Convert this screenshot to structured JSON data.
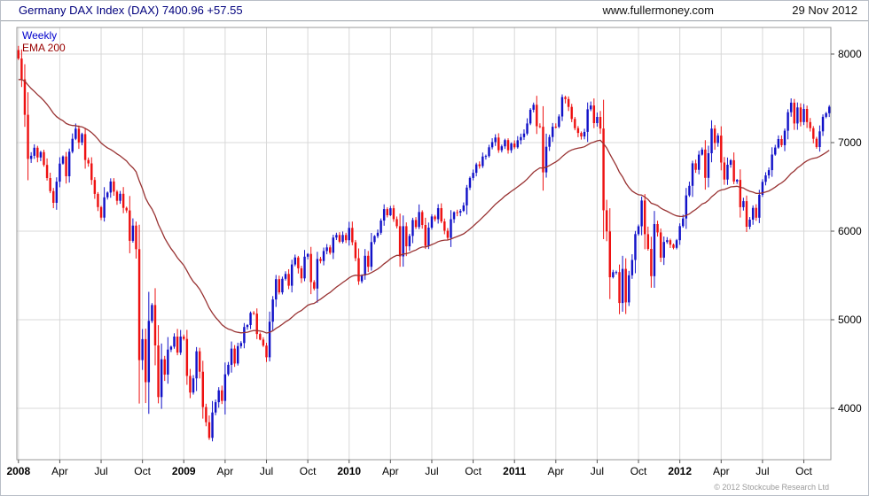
{
  "header": {
    "title": "Germany DAX Index (DAX) 7400.96 +57.55",
    "website": "www.fullermoney.com",
    "date": "29 Nov 2012"
  },
  "labels": {
    "frequency": "Weekly",
    "ema": "EMA 200"
  },
  "footer": {
    "copyright": "© 2012 Stockcube Research Ltd"
  },
  "chart_data": {
    "type": "candlestick",
    "title": "Germany DAX Index (DAX)",
    "frequency": "weekly",
    "last_price": 7400.96,
    "change": "+57.55",
    "ylim": [
      3420,
      8300
    ],
    "y_ticks": [
      4000,
      5000,
      6000,
      7000,
      8000
    ],
    "x_ticks": [
      {
        "label": "2008",
        "week": 0,
        "bold": true
      },
      {
        "label": "Apr",
        "week": 13,
        "bold": false
      },
      {
        "label": "Jul",
        "week": 26,
        "bold": false
      },
      {
        "label": "Oct",
        "week": 39,
        "bold": false
      },
      {
        "label": "2009",
        "week": 52,
        "bold": true
      },
      {
        "label": "Apr",
        "week": 65,
        "bold": false
      },
      {
        "label": "Jul",
        "week": 78,
        "bold": false
      },
      {
        "label": "Oct",
        "week": 91,
        "bold": false
      },
      {
        "label": "2010",
        "week": 104,
        "bold": true
      },
      {
        "label": "Apr",
        "week": 117,
        "bold": false
      },
      {
        "label": "Jul",
        "week": 130,
        "bold": false
      },
      {
        "label": "Oct",
        "week": 143,
        "bold": false
      },
      {
        "label": "2011",
        "week": 156,
        "bold": true
      },
      {
        "label": "Apr",
        "week": 169,
        "bold": false
      },
      {
        "label": "Jul",
        "week": 182,
        "bold": false
      },
      {
        "label": "Oct",
        "week": 195,
        "bold": false
      },
      {
        "label": "2012",
        "week": 208,
        "bold": true
      },
      {
        "label": "Apr",
        "week": 221,
        "bold": false
      },
      {
        "label": "Jul",
        "week": 234,
        "bold": false
      },
      {
        "label": "Oct",
        "week": 247,
        "bold": false
      }
    ],
    "first_open": 8045,
    "weekly_closes": [
      7949,
      7714,
      7314,
      6816,
      6851,
      6942,
      6832,
      6893,
      6748,
      6600,
      6452,
      6320,
      6559,
      6763,
      6843,
      6620,
      6897,
      7043,
      7157,
      7002,
      7096,
      6804,
      6765,
      6578,
      6421,
      6272,
      6153,
      6382,
      6436,
      6561,
      6446,
      6343,
      6422,
      6263,
      6234,
      5891,
      6063,
      5797,
      4544,
      4781,
      4295,
      4987,
      5166,
      4710,
      4127,
      4554,
      4381,
      4663,
      4696,
      4810,
      4629,
      4810,
      4783,
      4366,
      4178,
      4338,
      4644,
      4413,
      4014,
      3843,
      3666,
      3953,
      4069,
      4203,
      4084,
      4384,
      4491,
      4674,
      4506,
      4702,
      4737,
      4918,
      4940,
      5077,
      5069,
      4839,
      4776,
      4708,
      4576,
      4978,
      5229,
      5458,
      5309,
      5462,
      5517,
      5384,
      5624,
      5703,
      5581,
      5467,
      5712,
      5743,
      5425,
      5352,
      5686,
      5663,
      5776,
      5817,
      5756,
      5928,
      5957,
      5881,
      5957,
      5898,
      6037,
      5875,
      5695,
      5434,
      5500,
      5722,
      5598,
      5877,
      5945,
      5982,
      6120,
      6249,
      6180,
      6259,
      6136,
      6056,
      5715,
      6056,
      5829,
      5946,
      6126,
      6047,
      6216,
      6070,
      5834,
      6040,
      6166,
      6135,
      6260,
      6110,
      6005,
      5925,
      6135,
      6214,
      6209,
      6229,
      6291,
      6492,
      6601,
      6659,
      6754,
      6735,
      6843,
      6848,
      6947,
      7006,
      7057,
      6914,
      6958,
      7028,
      6914,
      6989,
      6947,
      7026,
      7062,
      7102,
      7216,
      7371,
      7427,
      7185,
      7179,
      6664,
      6953,
      7063,
      7179,
      7178,
      7295,
      7514,
      7492,
      7403,
      7267,
      7163,
      7109,
      7069,
      7121,
      7376,
      7419,
      7220,
      7290,
      7159,
      6236,
      5997,
      5480,
      5537,
      5538,
      5189,
      5574,
      5196,
      5502,
      5675,
      5967,
      6055,
      6346,
      5966,
      5800,
      5492,
      6080,
      5986,
      5701,
      5878,
      5898,
      5848,
      5812,
      5898,
      6057,
      6143,
      6404,
      6512,
      6766,
      6693,
      6864,
      6921,
      6602,
      6880,
      7158,
      6995,
      7079,
      6775,
      6583,
      6750,
      6801,
      6561,
      6579,
      6271,
      6339,
      6050,
      6130,
      6263,
      6152,
      6410,
      6557,
      6630,
      6689,
      6865,
      6944,
      7040,
      6971,
      7134,
      7343,
      7451,
      7216,
      7397,
      7232,
      7380,
      7232,
      7163,
      7043,
      6950,
      7127,
      7291,
      7332,
      7405
    ],
    "ema": {
      "label": "EMA 200",
      "period_weeks": 40,
      "seed": 7700
    },
    "legend_position": "top-left",
    "grid": true,
    "colors": {
      "up": "#1212c8",
      "down": "#ee1111",
      "ema": "#993333",
      "grid": "#d8d8d8",
      "plot_border": "#999999"
    }
  }
}
